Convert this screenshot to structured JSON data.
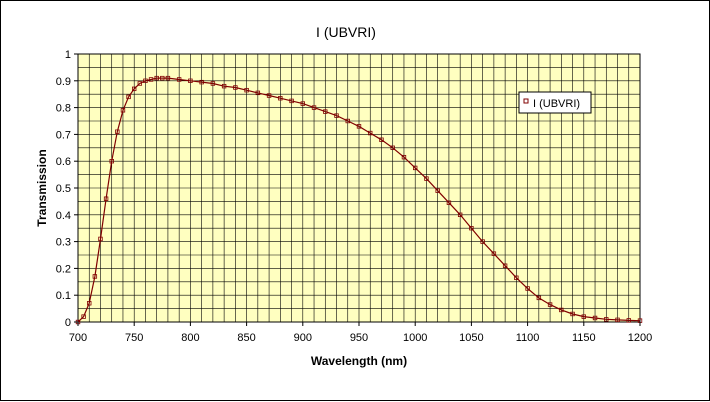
{
  "chart_data": {
    "type": "scatter",
    "title": "I (UBVRI)",
    "xlabel": "Wavelength (nm)",
    "ylabel": "Transmission",
    "xlim": [
      700,
      1200
    ],
    "ylim": [
      0,
      1
    ],
    "xticks": [
      700,
      750,
      800,
      850,
      900,
      950,
      1000,
      1050,
      1100,
      1150,
      1200
    ],
    "xtick_labels": [
      "700",
      "750",
      "800",
      "850",
      "900",
      "950",
      "1000",
      "1050",
      "1100",
      "1150",
      "1200"
    ],
    "yticks": [
      0,
      0.1,
      0.2,
      0.3,
      0.4,
      0.5,
      0.6,
      0.7,
      0.8,
      0.9,
      1
    ],
    "ytick_labels": [
      "0",
      "0.1",
      "0.2",
      "0.3",
      "0.4",
      "0.5",
      "0.6",
      "0.7",
      "0.8",
      "0.9",
      "1"
    ],
    "grid": true,
    "legend_position": "right",
    "colors": {
      "plot_area": "#ffffc0",
      "series": "#800000",
      "grid": "#000000"
    },
    "series": [
      {
        "name": "I (UBVRI)",
        "marker": "square",
        "x": [
          700,
          705,
          710,
          715,
          720,
          725,
          730,
          735,
          740,
          745,
          750,
          755,
          760,
          765,
          770,
          775,
          780,
          790,
          800,
          810,
          820,
          830,
          840,
          850,
          860,
          870,
          880,
          890,
          900,
          910,
          920,
          930,
          940,
          950,
          960,
          970,
          980,
          990,
          1000,
          1010,
          1020,
          1030,
          1040,
          1050,
          1060,
          1070,
          1080,
          1090,
          1100,
          1110,
          1120,
          1130,
          1140,
          1150,
          1160,
          1170,
          1180,
          1190,
          1200
        ],
        "y": [
          0.0,
          0.02,
          0.07,
          0.17,
          0.31,
          0.46,
          0.6,
          0.71,
          0.79,
          0.84,
          0.87,
          0.89,
          0.9,
          0.905,
          0.91,
          0.91,
          0.91,
          0.905,
          0.9,
          0.895,
          0.89,
          0.88,
          0.875,
          0.865,
          0.855,
          0.845,
          0.835,
          0.825,
          0.815,
          0.8,
          0.785,
          0.77,
          0.75,
          0.73,
          0.705,
          0.68,
          0.65,
          0.615,
          0.575,
          0.535,
          0.49,
          0.445,
          0.4,
          0.35,
          0.3,
          0.255,
          0.21,
          0.165,
          0.125,
          0.09,
          0.065,
          0.045,
          0.03,
          0.02,
          0.015,
          0.01,
          0.008,
          0.006,
          0.005
        ]
      }
    ]
  }
}
